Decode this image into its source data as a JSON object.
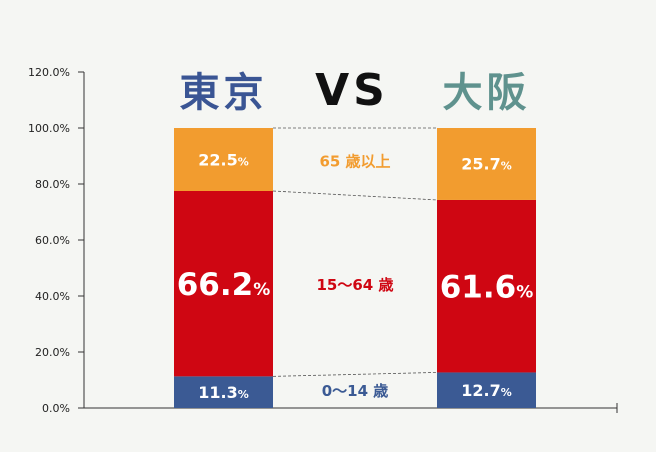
{
  "chart_data": {
    "type": "bar",
    "stacked": true,
    "orientation": "vertical",
    "categories": [
      "東京",
      "大阪"
    ],
    "vs_label": "VS",
    "series": [
      {
        "name": "0〜14 歳",
        "values": [
          11.3,
          12.7
        ],
        "color": "#3b5a94"
      },
      {
        "name": "15〜64 歳",
        "values": [
          66.2,
          61.6
        ],
        "color": "#cf0612"
      },
      {
        "name": "65 歳以上",
        "values": [
          22.5,
          25.7
        ],
        "color": "#f29c2f"
      }
    ],
    "ylim": [
      0,
      120
    ],
    "ytick_labels": [
      "0.0%",
      "20.0%",
      "40.0%",
      "60.0%",
      "80.0%",
      "100.0%",
      "120.0%"
    ],
    "category_title_colors": [
      "#3a5594",
      "#5f928e"
    ],
    "grid": false,
    "connector_lines": true
  }
}
